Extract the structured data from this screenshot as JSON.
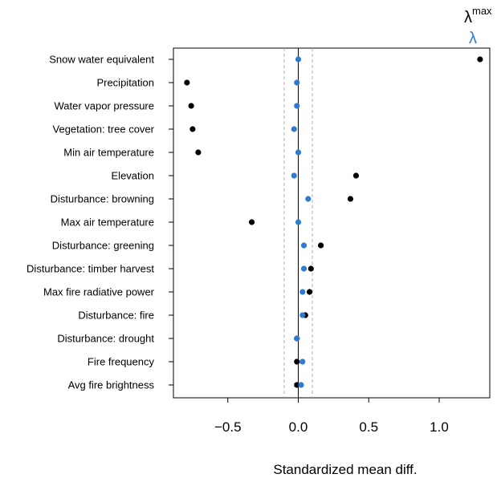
{
  "chart_data": {
    "type": "scatter",
    "xlabel": "Standardized mean diff.",
    "xlim": [
      -0.9,
      1.32
    ],
    "x_ticks": [
      -0.5,
      0.0,
      0.5,
      1.0
    ],
    "x_tick_labels": [
      "−0.5",
      "0.0",
      "0.5",
      "1.0"
    ],
    "threshold_lines": [
      -0.1,
      0.1
    ],
    "zero_line": 0,
    "categories": [
      "Snow water equivalent",
      "Precipitation",
      "Water vapor pressure",
      "Vegetation: tree cover",
      "Min air temperature",
      "Elevation",
      "Disturbance: browning",
      "Max air temperature",
      "Disturbance: greening",
      "Disturbance: timber harvest",
      "Max fire radiative power",
      "Disturbance: fire",
      "Disturbance: drought",
      "Fire frequency",
      "Avg fire brightness"
    ],
    "series": [
      {
        "name": "λ max",
        "color": "#000000",
        "values": [
          1.29,
          -0.79,
          -0.76,
          -0.75,
          -0.71,
          0.41,
          0.37,
          -0.33,
          0.16,
          0.09,
          0.08,
          0.05,
          -0.01,
          -0.01,
          -0.01
        ]
      },
      {
        "name": "λ",
        "color": "#2f7bd0",
        "values": [
          0.0,
          -0.01,
          -0.01,
          -0.03,
          0.0,
          -0.03,
          0.07,
          0.0,
          0.04,
          0.04,
          0.03,
          0.03,
          -0.01,
          0.03,
          0.02
        ]
      }
    ],
    "legend": {
      "position": "top-right",
      "lambda_max_base": "λ",
      "lambda_max_sup": "max",
      "lambda_label": "λ"
    }
  }
}
